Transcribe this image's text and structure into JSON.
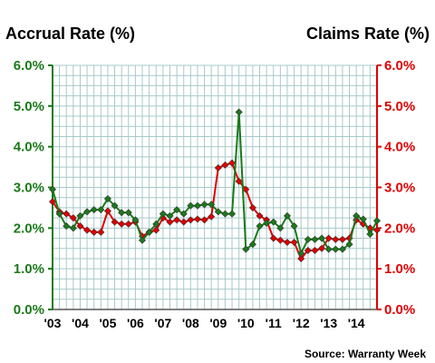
{
  "chart_data": {
    "type": "line",
    "title_left": "Accrual Rate (%)",
    "title_right": "Claims Rate (%)",
    "source": "Source: Warranty Week",
    "colors": {
      "accrual": "#1a7a1a",
      "claims": "#e00000",
      "grid": "#a9c9c9"
    },
    "ylim": [
      0,
      6
    ],
    "yticks_left": [
      "0.0%",
      "1.0%",
      "2.0%",
      "3.0%",
      "4.0%",
      "5.0%",
      "6.0%"
    ],
    "yticks_right": [
      "0.0%",
      "1.0%",
      "2.0%",
      "3.0%",
      "4.0%",
      "5.0%",
      "6.0%"
    ],
    "xlim": [
      2003,
      2014.75
    ],
    "xticks": [
      {
        "pos": 2003,
        "label": "'03"
      },
      {
        "pos": 2004,
        "label": "'04"
      },
      {
        "pos": 2005,
        "label": "'05"
      },
      {
        "pos": 2006,
        "label": "'06"
      },
      {
        "pos": 2007,
        "label": "'07"
      },
      {
        "pos": 2008,
        "label": "'08"
      },
      {
        "pos": 2009,
        "label": "'09"
      },
      {
        "pos": 2010,
        "label": "'10"
      },
      {
        "pos": 2011,
        "label": "'11"
      },
      {
        "pos": 2012,
        "label": "'12"
      },
      {
        "pos": 2013,
        "label": "'13"
      },
      {
        "pos": 2014,
        "label": "'14"
      }
    ],
    "grid": true,
    "series": [
      {
        "key": "accrual",
        "x": [
          2003.0,
          2003.25,
          2003.5,
          2003.75,
          2004.0,
          2004.25,
          2004.5,
          2004.75,
          2005.0,
          2005.25,
          2005.5,
          2005.75,
          2006.0,
          2006.25,
          2006.5,
          2006.75,
          2007.0,
          2007.25,
          2007.5,
          2007.75,
          2008.0,
          2008.25,
          2008.5,
          2008.75,
          2009.0,
          2009.25,
          2009.5,
          2009.75,
          2010.0,
          2010.25,
          2010.5,
          2010.75,
          2011.0,
          2011.25,
          2011.5,
          2011.75,
          2012.0,
          2012.25,
          2012.5,
          2012.75,
          2013.0,
          2013.25,
          2013.5,
          2013.75,
          2014.0,
          2014.25,
          2014.5,
          2014.75
        ],
        "values": [
          2.95,
          2.35,
          2.05,
          2.0,
          2.3,
          2.4,
          2.45,
          2.45,
          2.72,
          2.55,
          2.38,
          2.38,
          2.2,
          1.7,
          1.9,
          2.1,
          2.35,
          2.3,
          2.45,
          2.35,
          2.55,
          2.55,
          2.58,
          2.58,
          2.4,
          2.35,
          2.35,
          4.85,
          1.48,
          1.6,
          2.05,
          2.12,
          2.15,
          2.0,
          2.3,
          2.05,
          1.38,
          1.72,
          1.72,
          1.75,
          1.48,
          1.48,
          1.48,
          1.6,
          2.3,
          2.22,
          1.85,
          2.18
        ]
      },
      {
        "key": "claims",
        "x": [
          2003.0,
          2003.25,
          2003.5,
          2003.75,
          2004.0,
          2004.25,
          2004.5,
          2004.75,
          2005.0,
          2005.25,
          2005.5,
          2005.75,
          2006.0,
          2006.25,
          2006.5,
          2006.75,
          2007.0,
          2007.25,
          2007.5,
          2007.75,
          2008.0,
          2008.25,
          2008.5,
          2008.75,
          2009.0,
          2009.25,
          2009.5,
          2009.75,
          2010.0,
          2010.25,
          2010.5,
          2010.75,
          2011.0,
          2011.25,
          2011.5,
          2011.75,
          2012.0,
          2012.25,
          2012.5,
          2012.75,
          2013.0,
          2013.25,
          2013.5,
          2013.75,
          2014.0,
          2014.25,
          2014.5,
          2014.75
        ],
        "values": [
          2.65,
          2.4,
          2.35,
          2.25,
          2.05,
          1.95,
          1.9,
          1.9,
          2.42,
          2.15,
          2.1,
          2.1,
          2.15,
          1.8,
          1.9,
          1.95,
          2.25,
          2.15,
          2.2,
          2.15,
          2.2,
          2.22,
          2.2,
          2.28,
          3.48,
          3.55,
          3.6,
          3.15,
          2.95,
          2.5,
          2.3,
          2.2,
          1.75,
          1.7,
          1.65,
          1.65,
          1.25,
          1.45,
          1.45,
          1.5,
          1.75,
          1.72,
          1.72,
          1.75,
          2.2,
          2.1,
          2.0,
          1.95
        ]
      }
    ]
  }
}
